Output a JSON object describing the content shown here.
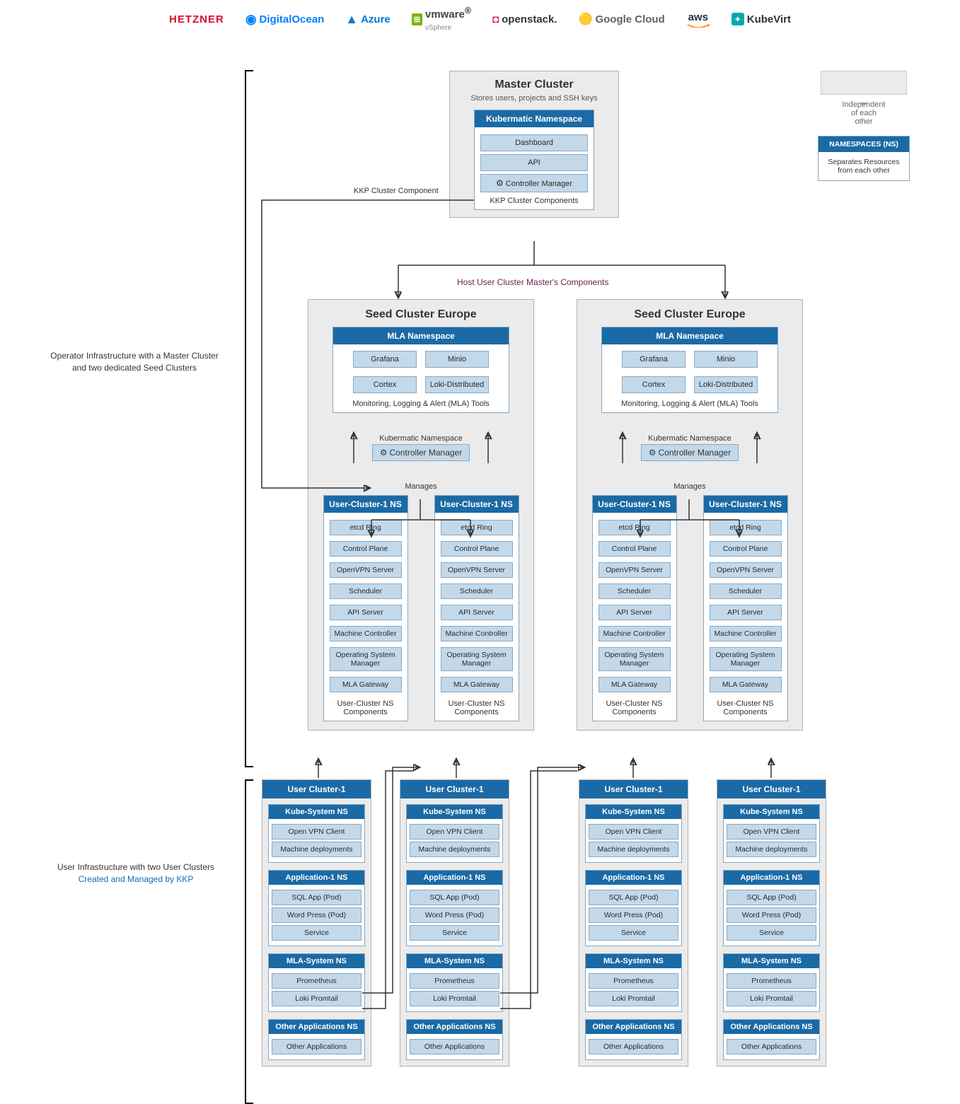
{
  "colors": {
    "cluster_bg": "#ebebeb",
    "cluster_border": "#b0b0b0",
    "ns_border": "#86a8c5",
    "ns_head": "#1b6aa5",
    "ns_head_text": "#ffffff",
    "chip_bg": "#c3d9ea",
    "chip_border": "#86a8c5",
    "arrow": "#333333",
    "flow_label": "#6b1f4e",
    "link_blue": "#0c6db7"
  },
  "providers": {
    "hetzner": "HETZNER",
    "digitalocean": "DigitalOcean",
    "azure": "Azure",
    "vmware": "vmware",
    "vmware_sub": "vSphere",
    "openstack": "openstack.",
    "googlecloud": "Google Cloud",
    "aws": "aws",
    "kubevirt": "KubeVirt"
  },
  "side": {
    "operator_line1": "Operator Infrastructure with a Master Cluster",
    "operator_line2": "and two dedicated Seed Clusters",
    "user_line1": "User Infrastructure with two User Clusters",
    "user_line2": "Created and Managed by KKP"
  },
  "edge_labels": {
    "kkp_component": "KKP Cluster Component",
    "host_components": "Host User Cluster Master's Components",
    "manages": "Manages",
    "kubermatic_ns": "Kubermatic Namespace"
  },
  "legend": {
    "independent": "Independent\nof each\nother",
    "ns_head": "NAMESPACES (NS)",
    "ns_body": "Separates Resources\nfrom each other"
  },
  "master": {
    "title": "Master Cluster",
    "subtitle": "Stores users, projects and SSH keys",
    "ns_head": "Kubermatic Namespace",
    "items": [
      "Dashboard",
      "API",
      "Controller Manager"
    ],
    "caption": "KKP Cluster Components"
  },
  "seed": {
    "title": "Seed Cluster Europe",
    "mla_head": "MLA Namespace",
    "mla_items": [
      "Grafana",
      "Minio",
      "Cortex",
      "Loki-Distributed"
    ],
    "mla_caption": "Monitoring, Logging & Alert (MLA) Tools",
    "ctrl_mgr": "Controller Manager",
    "uc_head": "User-Cluster-1 NS",
    "uc_items": [
      "etcd Ring",
      "Control Plane",
      "OpenVPN Server",
      "Scheduler",
      "API Server",
      "Machine Controller",
      "Operating System Manager",
      "MLA Gateway"
    ],
    "uc_caption": "User-Cluster NS Components"
  },
  "user": {
    "title": "User Cluster-1",
    "kube_ns_head": "Kube-System NS",
    "kube_items": [
      "Open VPN Client",
      "Machine deployments"
    ],
    "app_ns_head": "Application-1 NS",
    "app_items": [
      "SQL App (Pod)",
      "Word Press (Pod)",
      "Service"
    ],
    "mla_ns_head": "MLA-System NS",
    "mla_items": [
      "Prometheus",
      "Loki Promtail"
    ],
    "other_ns_head": "Other Applications NS",
    "other_items": [
      "Other Applications"
    ]
  }
}
